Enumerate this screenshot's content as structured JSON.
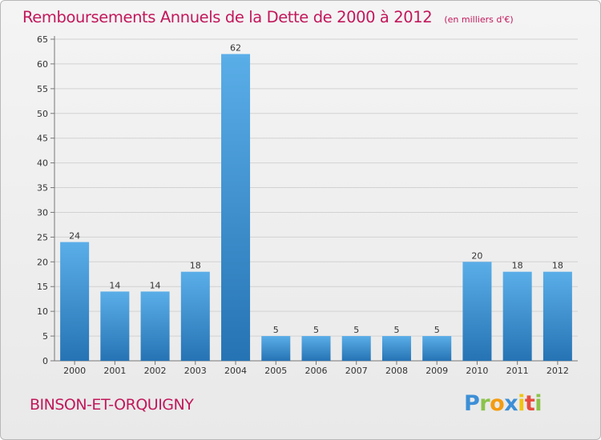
{
  "title": "Remboursements Annuels de la Dette de 2000 à 2012",
  "unit_label": "(en milliers d'€)",
  "location": "BINSON-ET-ORQUIGNY",
  "logo": {
    "text": "Proxiti",
    "icon": "proxiti-logo"
  },
  "chart_data": {
    "type": "bar",
    "categories": [
      "2000",
      "2001",
      "2002",
      "2003",
      "2004",
      "2005",
      "2006",
      "2007",
      "2008",
      "2009",
      "2010",
      "2011",
      "2012"
    ],
    "values": [
      24,
      14,
      14,
      18,
      62,
      5,
      5,
      5,
      5,
      5,
      20,
      18,
      18
    ],
    "value_labels": [
      "24",
      "14",
      "14",
      "18",
      "62",
      "5",
      "5",
      "5",
      "5",
      "5",
      "20",
      "18",
      "18"
    ],
    "yticks": [
      "0",
      "5",
      "10",
      "15",
      "20",
      "25",
      "30",
      "35",
      "40",
      "45",
      "50",
      "55",
      "60",
      "65"
    ],
    "ylim": [
      0,
      65
    ],
    "grid": true,
    "bar_color": "#3a8fd6"
  }
}
